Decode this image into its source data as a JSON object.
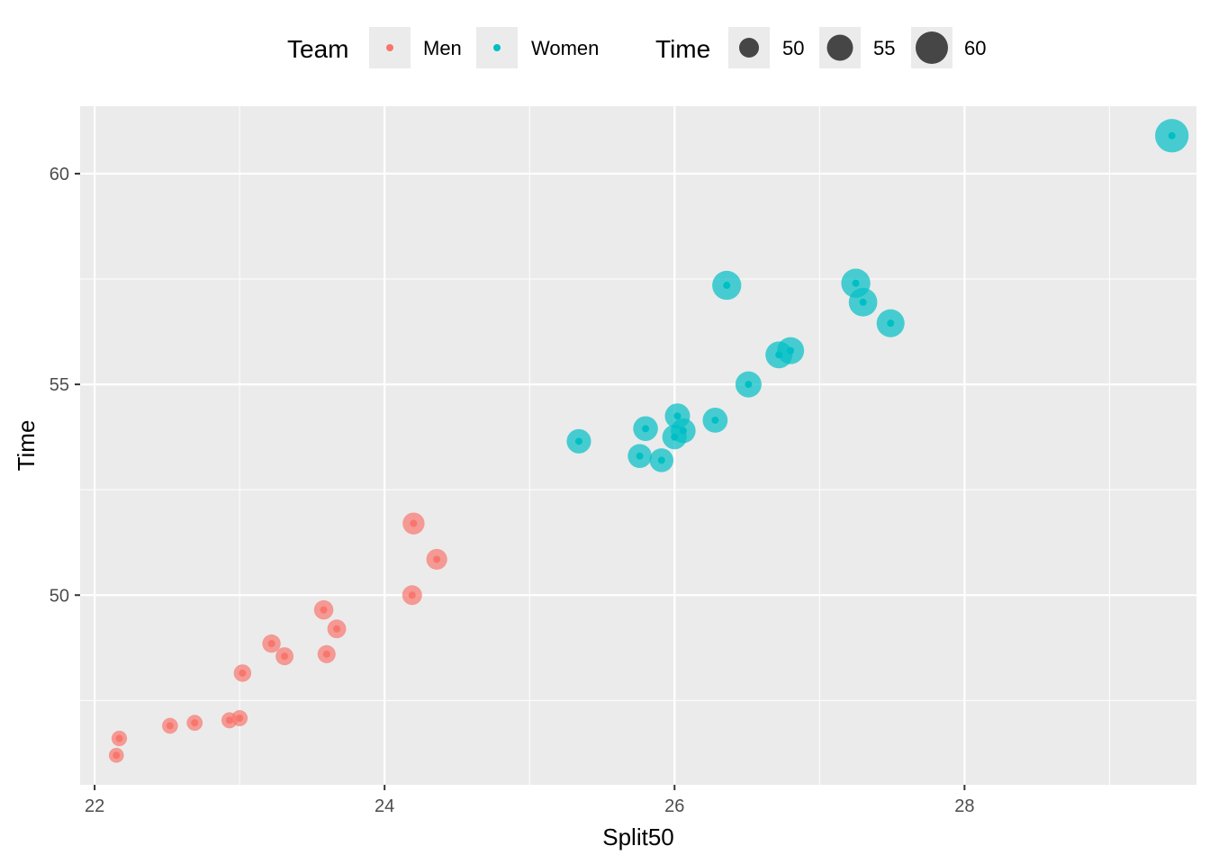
{
  "chart_data": {
    "type": "scatter",
    "title": "",
    "xlabel": "Split50",
    "ylabel": "Time",
    "xlim": [
      21.9,
      29.6
    ],
    "ylim": [
      45.5,
      61.6
    ],
    "x_ticks": [
      22,
      24,
      26,
      28
    ],
    "y_ticks": [
      50,
      55,
      60
    ],
    "x_tick_labels": [
      "22",
      "24",
      "26",
      "28"
    ],
    "y_tick_labels": [
      "50",
      "55",
      "60"
    ],
    "grid": true,
    "legend_position": "top",
    "legend": {
      "color_title": "Team",
      "color_entries": [
        {
          "label": "Men",
          "color": "#F8766D"
        },
        {
          "label": "Women",
          "color": "#00BFC4"
        }
      ],
      "size_title": "Time",
      "size_entries": [
        {
          "label": "50",
          "value": 50
        },
        {
          "label": "55",
          "value": 55
        },
        {
          "label": "60",
          "value": 60
        }
      ]
    },
    "series": [
      {
        "name": "Men",
        "color": "#F8766D",
        "points": [
          {
            "x": 22.15,
            "y": 46.2
          },
          {
            "x": 22.17,
            "y": 46.6
          },
          {
            "x": 22.52,
            "y": 46.9
          },
          {
            "x": 22.69,
            "y": 46.97
          },
          {
            "x": 22.93,
            "y": 47.03
          },
          {
            "x": 23.0,
            "y": 47.08
          },
          {
            "x": 23.02,
            "y": 48.15
          },
          {
            "x": 23.22,
            "y": 48.85
          },
          {
            "x": 23.31,
            "y": 48.55
          },
          {
            "x": 23.58,
            "y": 49.65
          },
          {
            "x": 23.6,
            "y": 48.6
          },
          {
            "x": 23.67,
            "y": 49.2
          },
          {
            "x": 24.2,
            "y": 51.7
          },
          {
            "x": 24.19,
            "y": 50.0
          },
          {
            "x": 24.36,
            "y": 50.85
          }
        ]
      },
      {
        "name": "Women",
        "color": "#00BFC4",
        "points": [
          {
            "x": 25.34,
            "y": 53.65
          },
          {
            "x": 25.76,
            "y": 53.3
          },
          {
            "x": 25.8,
            "y": 53.95
          },
          {
            "x": 25.91,
            "y": 53.2
          },
          {
            "x": 26.0,
            "y": 53.75
          },
          {
            "x": 26.02,
            "y": 54.25
          },
          {
            "x": 26.06,
            "y": 53.9
          },
          {
            "x": 26.28,
            "y": 54.15
          },
          {
            "x": 26.36,
            "y": 57.35
          },
          {
            "x": 26.51,
            "y": 55.0
          },
          {
            "x": 26.72,
            "y": 55.7
          },
          {
            "x": 26.8,
            "y": 55.8
          },
          {
            "x": 27.25,
            "y": 57.4
          },
          {
            "x": 27.3,
            "y": 56.95
          },
          {
            "x": 27.49,
            "y": 56.45
          },
          {
            "x": 29.43,
            "y": 60.9
          }
        ]
      }
    ]
  }
}
